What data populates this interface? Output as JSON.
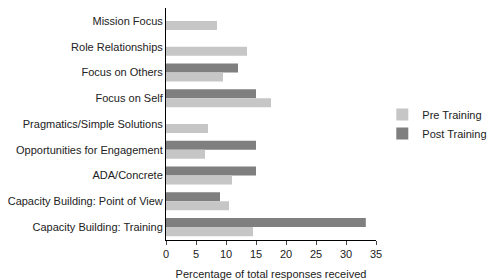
{
  "chart_data": {
    "type": "bar",
    "orientation": "horizontal",
    "categories": [
      "Mission Focus",
      "Role Relationships",
      "Focus on Others",
      "Focus on Self",
      "Pragmatics/Simple Solutions",
      "Opportunities for Engagement",
      "ADA/Concrete",
      "Capacity Building: Point of View",
      "Capacity Building: Training"
    ],
    "series": [
      {
        "name": "Pre Training",
        "color": "#c6c6c6",
        "values": [
          8.5,
          13.5,
          9.5,
          17.5,
          7,
          6.5,
          11,
          10.5,
          14.5
        ]
      },
      {
        "name": "Post Training",
        "color": "#7f7f7f",
        "values": [
          0,
          0,
          12,
          15,
          0,
          15,
          15,
          9,
          33.3
        ]
      }
    ],
    "x_label": "Percentage of total responses received",
    "xlim": [
      0,
      35
    ],
    "xticks": [
      0,
      5,
      10,
      15,
      20,
      25,
      30,
      35
    ],
    "grid": false,
    "legend": "right"
  }
}
